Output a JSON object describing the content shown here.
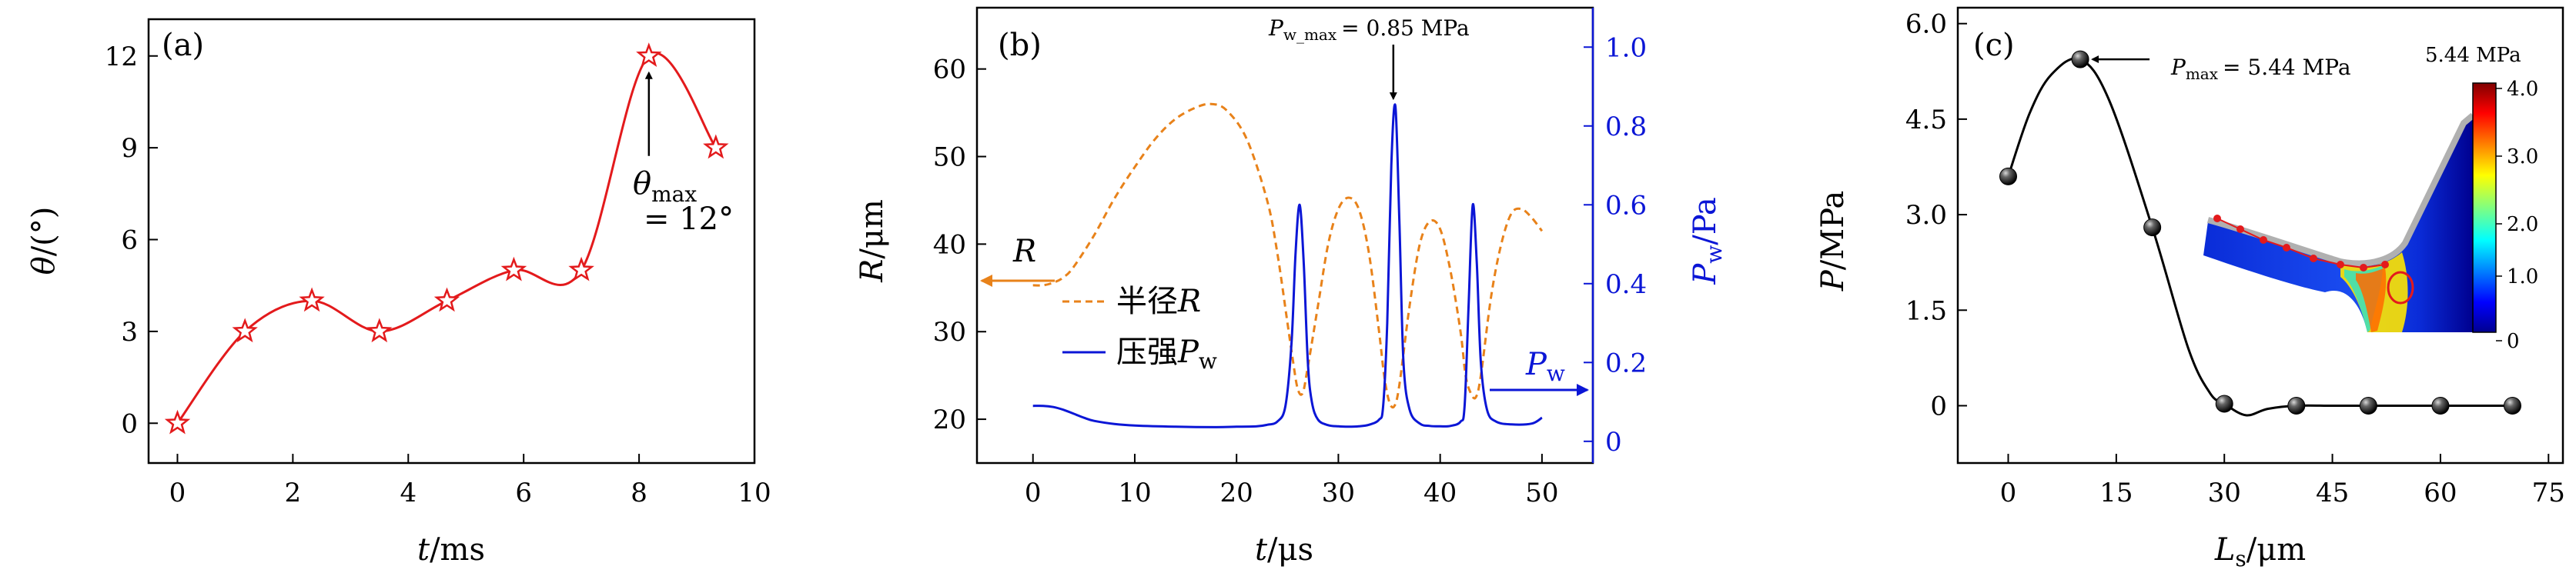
{
  "colors": {
    "red": "#e31a1c",
    "orange": "#e8821a",
    "blue": "#0b16d6",
    "black": "#000000"
  },
  "chart_data": [
    {
      "type": "line",
      "panel_label": "(a)",
      "xlabel_var": "t",
      "xlabel_unit": "ms",
      "ylabel_var": "θ",
      "ylabel_unit": "(°)",
      "xlim": [
        -0.5,
        10
      ],
      "ylim": [
        -1.3,
        13.2
      ],
      "xticks": [
        0,
        2,
        4,
        6,
        8,
        10
      ],
      "yticks": [
        0,
        3,
        6,
        9,
        12
      ],
      "x": [
        0,
        1.17,
        2.33,
        3.5,
        4.67,
        5.83,
        7.0,
        8.17,
        9.33
      ],
      "y": [
        0,
        3.0,
        4.0,
        3.0,
        4.0,
        5.0,
        5.0,
        12.0,
        9.0
      ],
      "marker": "star",
      "annotation": {
        "line1": "θ",
        "line1_sub": "max",
        "line2": "= 12°",
        "x": 8.17,
        "y": 12.0
      }
    },
    {
      "type": "line",
      "panel_label": "(b)",
      "xlabel_var": "t",
      "xlabel_unit": "μs",
      "ylabel_left_var": "R",
      "ylabel_left_unit": "μm",
      "ylabel_right_var": "P",
      "ylabel_right_sub": "w",
      "ylabel_right_unit": "Pa",
      "xlim": [
        -5.5,
        55
      ],
      "ylim_left": [
        15,
        67
      ],
      "ylim_right": [
        -0.055,
        1.1
      ],
      "xticks": [
        0,
        10,
        20,
        30,
        40,
        50
      ],
      "yticks_left": [
        20,
        30,
        40,
        50,
        60
      ],
      "yticks_right": [
        "0",
        "0.2",
        "0.4",
        "0.6",
        "0.8",
        "1.0"
      ],
      "yticks_right_values": [
        0,
        0.2,
        0.4,
        0.6,
        0.8,
        1.0
      ],
      "series": [
        {
          "name": "半径R",
          "legend_text": "半径",
          "legend_var": "R",
          "axis": "left",
          "style": "dashed",
          "x": [
            0,
            1,
            2,
            3,
            4,
            6,
            8,
            10,
            12,
            14,
            16,
            17.5,
            19,
            21,
            23,
            24,
            25,
            25.5,
            26,
            26.5,
            27,
            28,
            29,
            30,
            31,
            32,
            33,
            34,
            34.5,
            35,
            35.5,
            36,
            37,
            38,
            39,
            40,
            41,
            42,
            42.5,
            43,
            43.5,
            44,
            45,
            46,
            47,
            48,
            49,
            50
          ],
          "y": [
            35.3,
            35.3,
            35.6,
            36.2,
            37.4,
            41,
            45.2,
            48.8,
            52,
            54.3,
            55.6,
            56.0,
            55.3,
            52,
            45,
            39,
            31,
            27,
            23.5,
            23,
            26,
            33,
            40,
            44,
            45.3,
            44,
            39,
            30,
            25,
            22,
            21.5,
            24,
            33,
            40,
            42.6,
            41.7,
            37,
            30,
            25,
            23,
            22.5,
            25,
            34,
            40,
            43.5,
            44.0,
            43.0,
            41.5
          ]
        },
        {
          "name": "压强Pw",
          "legend_text": "压强",
          "legend_var": "P",
          "legend_sub": "w",
          "axis": "right",
          "style": "solid",
          "x": [
            0,
            1,
            2,
            3,
            4,
            5,
            6,
            8,
            10,
            14,
            18,
            20,
            22,
            23,
            24,
            24.8,
            25.4,
            25.8,
            26.2,
            26.6,
            27,
            27.4,
            28,
            29,
            30,
            31,
            32,
            33,
            34,
            34.4,
            34.8,
            35.2,
            35.6,
            36,
            36.4,
            37,
            38,
            39,
            40,
            41,
            42,
            42.4,
            42.8,
            43.2,
            43.6,
            44,
            44.6,
            45.5,
            47,
            49,
            50
          ],
          "y": [
            0.09,
            0.09,
            0.087,
            0.08,
            0.07,
            0.06,
            0.052,
            0.044,
            0.04,
            0.037,
            0.036,
            0.037,
            0.038,
            0.042,
            0.05,
            0.09,
            0.25,
            0.48,
            0.6,
            0.45,
            0.2,
            0.1,
            0.055,
            0.041,
            0.038,
            0.037,
            0.038,
            0.042,
            0.055,
            0.09,
            0.3,
            0.7,
            0.85,
            0.55,
            0.2,
            0.08,
            0.045,
            0.039,
            0.038,
            0.039,
            0.05,
            0.09,
            0.35,
            0.6,
            0.45,
            0.2,
            0.08,
            0.05,
            0.043,
            0.045,
            0.06
          ]
        }
      ],
      "annotations": [
        {
          "var": "P",
          "sub": "w_max",
          "text": "= 0.85 MPa",
          "x": 35.4,
          "y": 0.85
        },
        {
          "var": "R",
          "arrow": "left"
        },
        {
          "var": "P",
          "sub": "w",
          "arrow": "right"
        }
      ]
    },
    {
      "type": "scatter",
      "panel_label": "(c)",
      "xlabel_var": "L",
      "xlabel_sub": "s",
      "xlabel_unit": "μm",
      "ylabel_var": "P",
      "ylabel_unit": "MPa",
      "xlim": [
        -7,
        77
      ],
      "ylim": [
        -0.9,
        6.25
      ],
      "xticks": [
        0,
        15,
        30,
        45,
        60,
        75
      ],
      "yticks": [
        "0",
        "1.5",
        "3.0",
        "4.5",
        "6.0"
      ],
      "ytick_values": [
        0,
        1.5,
        3.0,
        4.5,
        6.0
      ],
      "x": [
        0,
        10,
        20,
        30,
        40,
        50,
        60,
        70
      ],
      "y": [
        3.6,
        5.44,
        2.8,
        0.03,
        0.0,
        0.0,
        0.0,
        0.0
      ],
      "annotation": {
        "var": "P",
        "sub": "max",
        "text": "= 5.44 MPa",
        "x": 10,
        "y": 5.44
      },
      "inset": {
        "title": "5.44 MPa",
        "colorbar_ticks": [
          "4.0",
          "3.0",
          "2.0",
          "1.0",
          "0"
        ]
      }
    }
  ]
}
